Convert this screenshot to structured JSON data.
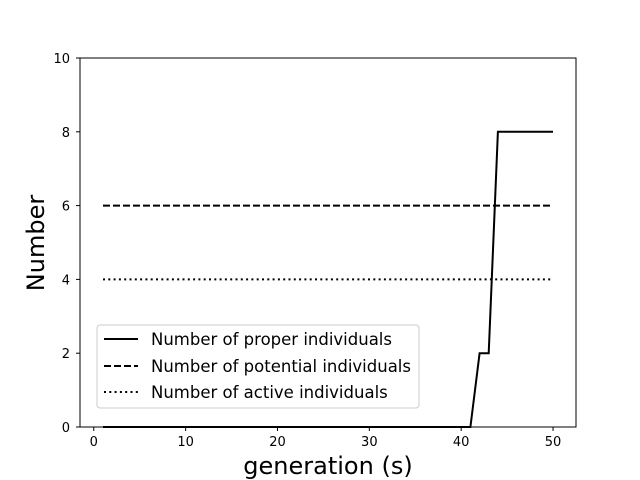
{
  "chart_data": {
    "type": "line",
    "title": "",
    "xlabel": "generation (s)",
    "ylabel": "Number",
    "xlim": [
      -1.5,
      52.5
    ],
    "ylim": [
      0,
      10
    ],
    "xticks": [
      0,
      10,
      20,
      30,
      40,
      50
    ],
    "yticks": [
      0,
      2,
      4,
      6,
      8,
      10
    ],
    "grid": false,
    "legend_position": "lower-left",
    "series": [
      {
        "name": "Number of proper individuals",
        "line_style": "solid",
        "color": "#000000",
        "x": [
          1,
          41,
          42,
          43,
          44,
          50
        ],
        "y": [
          0,
          0,
          2,
          2,
          8,
          8
        ]
      },
      {
        "name": "Number of potential individuals",
        "line_style": "dashed",
        "color": "#000000",
        "x": [
          1,
          50
        ],
        "y": [
          6,
          6
        ]
      },
      {
        "name": "Number of active individuals",
        "line_style": "dotted",
        "color": "#000000",
        "x": [
          1,
          50
        ],
        "y": [
          4,
          4
        ]
      }
    ]
  }
}
